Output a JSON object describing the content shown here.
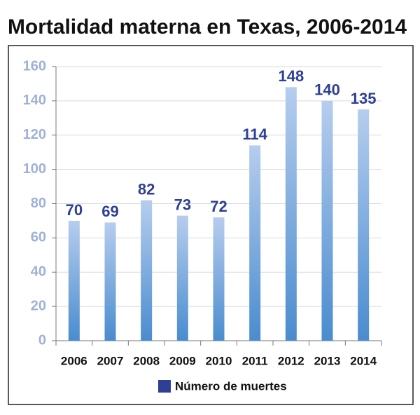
{
  "chart_data": {
    "type": "bar",
    "title": "Mortalidad materna en Texas, 2006-2014",
    "categories": [
      "2006",
      "2007",
      "2008",
      "2009",
      "2010",
      "2011",
      "2012",
      "2013",
      "2014"
    ],
    "series": [
      {
        "name": "Número de muertes",
        "color": "#2e3f95",
        "values": [
          70,
          69,
          82,
          73,
          72,
          114,
          148,
          140,
          135
        ]
      }
    ],
    "ylim": [
      0,
      160
    ],
    "yticks": [
      0,
      20,
      40,
      60,
      80,
      100,
      120,
      140,
      160
    ],
    "grid": true
  }
}
